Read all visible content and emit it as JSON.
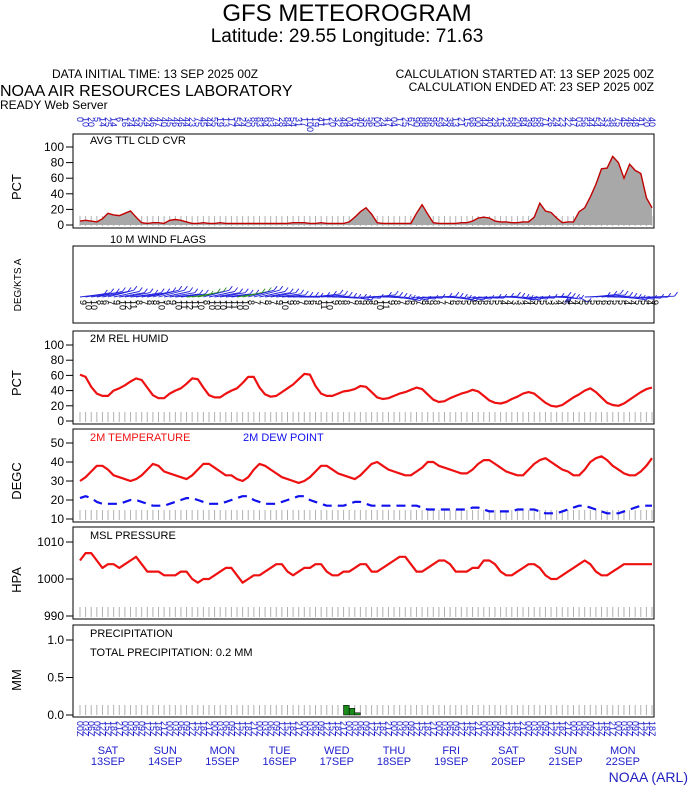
{
  "header": {
    "title": "GFS METEOROGRAM",
    "subtitle": "Latitude: 29.55 Longitude:  71.63",
    "initial_time": "DATA INITIAL TIME: 13 SEP 2025 00Z",
    "calc_started": "CALCULATION STARTED AT: 13 SEP 2025 00Z",
    "calc_ended": "CALCULATION ENDED AT: 23 SEP 2025 00Z",
    "lab": "NOAA AIR RESOURCES LABORATORY",
    "server": "READY Web Server",
    "footer": "NOAA (ARL)"
  },
  "colors": {
    "red": "#ee1111",
    "blue": "#1111ee",
    "gray": "#a8a8a8",
    "green": "#1a8a1a"
  },
  "chart_data": [
    {
      "type": "area",
      "title": "AVG TTL CLD CVR",
      "ylabel": "PCT",
      "ylim": [
        0,
        100
      ],
      "yticks": [
        0,
        20,
        40,
        60,
        80,
        100
      ],
      "values": [
        5,
        6,
        5,
        4,
        8,
        15,
        13,
        12,
        15,
        18,
        10,
        3,
        2,
        3,
        3,
        2,
        6,
        7,
        6,
        4,
        2,
        2,
        3,
        2,
        2,
        3,
        2,
        2,
        2,
        2,
        2,
        2,
        2,
        2,
        2,
        2,
        2,
        2,
        3,
        3,
        3,
        2,
        2,
        3,
        2,
        2,
        2,
        2,
        4,
        10,
        17,
        22,
        14,
        3,
        2,
        2,
        2,
        2,
        2,
        2,
        15,
        26,
        14,
        3,
        2,
        2,
        2,
        2,
        3,
        3,
        5,
        9,
        10,
        9,
        5,
        4,
        4,
        3,
        3,
        4,
        4,
        10,
        28,
        18,
        16,
        9,
        3,
        4,
        4,
        17,
        22,
        36,
        52,
        72,
        73,
        88,
        80,
        60,
        78,
        70,
        66,
        35,
        22
      ]
    },
    {
      "type": "barbs",
      "title": "10 M  WIND FLAGS",
      "ylabel": "DEG/KTS  A",
      "directions": [
        250,
        255,
        255,
        260,
        260,
        265,
        260,
        255,
        255,
        250,
        255,
        255,
        260,
        265,
        265,
        260,
        255,
        250,
        250,
        245,
        255,
        260,
        265,
        260,
        255,
        255,
        250,
        250,
        255,
        260,
        265,
        265,
        260,
        255,
        255,
        250,
        245,
        240,
        240,
        235,
        240,
        245,
        250,
        245,
        240,
        235,
        230,
        230,
        225,
        220,
        230,
        240,
        245,
        240,
        235,
        230,
        225,
        220,
        215,
        220,
        225,
        230,
        235,
        240,
        235,
        230,
        225,
        220,
        215,
        220,
        225,
        230,
        230,
        235,
        240,
        235,
        230,
        225,
        220,
        220,
        225,
        230,
        235,
        240,
        235,
        230,
        225,
        180,
        160,
        200,
        240,
        245,
        250,
        245,
        240,
        235,
        230,
        225,
        220,
        225,
        230,
        235,
        240
      ],
      "speeds": [
        4,
        5,
        6,
        6,
        5,
        5,
        6,
        7,
        6,
        5,
        5,
        6,
        6,
        7,
        6,
        5,
        5,
        6,
        6,
        5,
        6,
        7,
        8,
        7,
        6,
        5,
        5,
        6,
        7,
        7,
        6,
        6,
        5,
        6,
        6,
        5,
        5,
        6,
        6,
        5,
        6,
        7,
        6,
        6,
        5,
        5,
        6,
        6,
        5,
        5,
        6,
        7,
        6,
        6,
        5,
        5,
        6,
        6,
        5,
        6,
        7,
        6,
        6,
        5,
        5,
        6,
        6,
        5,
        5,
        6,
        6,
        5,
        5,
        6,
        6,
        5,
        5,
        6,
        6,
        5,
        6,
        6,
        5,
        5,
        6,
        6,
        5,
        5,
        5,
        6,
        6,
        7,
        6,
        6,
        5,
        6,
        6,
        5,
        6,
        6,
        5,
        5,
        6
      ],
      "speed_labels": [
        "9",
        "10",
        "10",
        "8",
        "6",
        "7",
        "9",
        "10",
        "12",
        "11",
        "8",
        "7",
        "8",
        "8",
        "10",
        "9",
        "9",
        "10",
        "11",
        "12",
        "11",
        "10",
        "8",
        "10",
        "10",
        "10",
        "11",
        "11",
        "10",
        "10",
        "8",
        "7",
        "7",
        "8",
        "7",
        "9",
        "10",
        "9",
        "8",
        "7",
        "8",
        "6",
        "9",
        "11",
        "10",
        "9",
        "8",
        "8",
        "7",
        "8",
        "9",
        "8",
        "9",
        "10",
        "11",
        "9",
        "8",
        "7",
        "6",
        "6",
        "7",
        "8",
        "9",
        "8",
        "7",
        "7",
        "6",
        "6",
        "5",
        "5",
        "6",
        "6",
        "6",
        "5",
        "5",
        "4",
        "4",
        "3",
        "3",
        "4",
        "4",
        "5",
        "5",
        "3",
        "3",
        "4",
        "5",
        "4",
        "4",
        "5",
        "5",
        "5",
        "6",
        "6",
        "6",
        "5",
        "5",
        "4",
        "4",
        "5",
        "5",
        "4",
        "9"
      ]
    },
    {
      "type": "line",
      "title": "2M REL HUMID",
      "ylabel": "PCT",
      "ylim": [
        0,
        100
      ],
      "yticks": [
        0,
        20,
        40,
        60,
        80,
        100
      ],
      "values": [
        61,
        58,
        45,
        36,
        33,
        33,
        40,
        43,
        47,
        52,
        56,
        54,
        44,
        34,
        30,
        30,
        36,
        40,
        43,
        49,
        56,
        55,
        44,
        34,
        31,
        31,
        36,
        40,
        43,
        50,
        58,
        58,
        44,
        35,
        32,
        33,
        38,
        43,
        48,
        55,
        62,
        61,
        46,
        36,
        33,
        33,
        36,
        39,
        40,
        42,
        46,
        45,
        38,
        31,
        29,
        30,
        33,
        36,
        38,
        41,
        44,
        42,
        35,
        28,
        25,
        26,
        30,
        33,
        36,
        38,
        41,
        39,
        33,
        27,
        24,
        23,
        25,
        29,
        32,
        36,
        38,
        36,
        30,
        24,
        20,
        19,
        21,
        26,
        31,
        35,
        40,
        43,
        38,
        31,
        24,
        21,
        20,
        23,
        28,
        33,
        38,
        42,
        44
      ]
    },
    {
      "type": "line",
      "ylabel": "DEGC",
      "ylim": [
        10,
        50
      ],
      "yticks": [
        10,
        20,
        30,
        40,
        50
      ],
      "series": [
        {
          "name": "2M TEMPERATURE",
          "color": "#ee1111",
          "dash": false,
          "values": [
            30,
            32,
            35,
            38,
            38,
            36,
            33,
            32,
            31,
            30,
            31,
            33,
            36,
            39,
            38,
            35,
            34,
            33,
            32,
            31,
            33,
            36,
            39,
            39,
            37,
            35,
            33,
            33,
            31,
            30,
            32,
            36,
            39,
            38,
            36,
            34,
            32,
            31,
            30,
            29,
            30,
            32,
            35,
            38,
            38,
            36,
            34,
            33,
            32,
            31,
            33,
            36,
            39,
            40,
            38,
            36,
            35,
            34,
            33,
            33,
            35,
            37,
            40,
            40,
            38,
            37,
            36,
            35,
            34,
            34,
            36,
            39,
            41,
            41,
            39,
            37,
            35,
            34,
            33,
            33,
            36,
            39,
            41,
            42,
            40,
            38,
            36,
            35,
            33,
            33,
            36,
            40,
            42,
            43,
            41,
            38,
            36,
            34,
            33,
            33,
            35,
            38,
            42
          ]
        },
        {
          "name": "2M  DEW POINT",
          "color": "#1111ee",
          "dash": true,
          "values": [
            21,
            22,
            21,
            19,
            18,
            18,
            18,
            18,
            19,
            20,
            20,
            19,
            18,
            17,
            17,
            17,
            18,
            19,
            20,
            21,
            21,
            20,
            19,
            18,
            18,
            18,
            19,
            20,
            21,
            22,
            22,
            20,
            19,
            18,
            18,
            18,
            19,
            20,
            21,
            22,
            22,
            20,
            19,
            18,
            17,
            17,
            17,
            17,
            18,
            19,
            19,
            18,
            17,
            17,
            17,
            17,
            17,
            17,
            17,
            17,
            17,
            16,
            15,
            15,
            15,
            15,
            15,
            15,
            15,
            15,
            16,
            16,
            15,
            14,
            14,
            14,
            14,
            14,
            15,
            15,
            15,
            15,
            14,
            13,
            13,
            13,
            14,
            15,
            16,
            17,
            17,
            16,
            15,
            14,
            13,
            13,
            13,
            14,
            15,
            16,
            17,
            17,
            17
          ]
        }
      ]
    },
    {
      "type": "line",
      "title": "MSL PRESSURE",
      "ylabel": "HPA",
      "ylim": [
        990,
        1010
      ],
      "yticks": [
        990,
        1000,
        1010
      ],
      "values": [
        1005,
        1007,
        1007,
        1005,
        1003,
        1004,
        1004,
        1003,
        1004,
        1005,
        1006,
        1004,
        1002,
        1002,
        1002,
        1001,
        1001,
        1001,
        1002,
        1002,
        1000,
        999,
        1000,
        1000,
        1001,
        1002,
        1003,
        1003,
        1001,
        999,
        1000,
        1001,
        1001,
        1002,
        1003,
        1004,
        1004,
        1002,
        1001,
        1002,
        1003,
        1003,
        1004,
        1004,
        1002,
        1001,
        1001,
        1002,
        1002,
        1003,
        1004,
        1004,
        1002,
        1002,
        1003,
        1004,
        1005,
        1006,
        1006,
        1004,
        1002,
        1002,
        1003,
        1004,
        1005,
        1005,
        1004,
        1002,
        1002,
        1002,
        1003,
        1003,
        1005,
        1005,
        1004,
        1002,
        1001,
        1001,
        1002,
        1003,
        1004,
        1004,
        1003,
        1001,
        1000,
        1000,
        1001,
        1002,
        1003,
        1004,
        1005,
        1004,
        1002,
        1001,
        1001,
        1002,
        1003,
        1004,
        1004,
        1004,
        1004,
        1004,
        1004
      ]
    },
    {
      "type": "bar",
      "title": "PRECIPITATION",
      "ylabel": "MM",
      "ylim": [
        0,
        1.0
      ],
      "yticks": [
        "0.0",
        "0.5",
        "1.0"
      ],
      "annotation": "TOTAL PRECIPITATION:   0.2 MM",
      "values": [
        0,
        0,
        0,
        0,
        0,
        0,
        0,
        0,
        0,
        0,
        0,
        0,
        0,
        0,
        0,
        0,
        0,
        0,
        0,
        0,
        0,
        0,
        0,
        0,
        0,
        0,
        0,
        0,
        0,
        0,
        0,
        0,
        0,
        0,
        0,
        0,
        0,
        0,
        0,
        0,
        0,
        0,
        0,
        0,
        0,
        0,
        0,
        0.13,
        0.09,
        0.03,
        0,
        0,
        0,
        0,
        0,
        0,
        0,
        0,
        0,
        0,
        0,
        0,
        0,
        0,
        0,
        0,
        0,
        0,
        0,
        0,
        0,
        0,
        0,
        0,
        0,
        0,
        0,
        0,
        0,
        0,
        0,
        0,
        0,
        0,
        0,
        0,
        0,
        0,
        0,
        0,
        0,
        0,
        0,
        0,
        0,
        0,
        0,
        0,
        0,
        0,
        0,
        0,
        0
      ]
    }
  ],
  "time_axis": {
    "hours": [
      "00",
      "03",
      "06",
      "09",
      "12",
      "15",
      "18",
      "21"
    ],
    "days": [
      {
        "dow": "SAT",
        "date": "13SEP"
      },
      {
        "dow": "SUN",
        "date": "14SEP"
      },
      {
        "dow": "MON",
        "date": "15SEP"
      },
      {
        "dow": "TUE",
        "date": "16SEP"
      },
      {
        "dow": "WED",
        "date": "17SEP"
      },
      {
        "dow": "THU",
        "date": "18SEP"
      },
      {
        "dow": "FRI",
        "date": "19SEP"
      },
      {
        "dow": "SAT",
        "date": "20SEP"
      },
      {
        "dow": "SUN",
        "date": "21SEP"
      },
      {
        "dow": "MON",
        "date": "22SEP"
      }
    ],
    "top_labels": [
      "0",
      "10",
      "20",
      "5",
      "14",
      "25",
      "14",
      "6",
      "16",
      "24",
      "34",
      "25",
      "24",
      "46",
      "47",
      "40",
      "45",
      "46",
      "46",
      "44",
      "23",
      "75",
      "45",
      "44",
      "55",
      "19",
      "13",
      "17",
      "54",
      "24",
      "30",
      "85",
      "83",
      "94",
      "83",
      "74",
      "28",
      "84",
      "54",
      "31",
      "17",
      "100",
      "19",
      "41",
      "11",
      "20",
      "32",
      "48",
      "04",
      "16",
      "40",
      "35",
      "56",
      "00",
      "24",
      "47",
      "04",
      "17",
      "25",
      "67",
      "90",
      "88",
      "86",
      "95",
      "59",
      "24",
      "38",
      "13",
      "21",
      "15",
      "68",
      "00",
      "44",
      "40",
      "29",
      "15",
      "23",
      "58",
      "20",
      "84",
      "39",
      "69",
      "68",
      "71",
      "26",
      "24",
      "23",
      "22",
      "47",
      "03",
      "56",
      "44",
      "54",
      "24",
      "33",
      "38",
      "75",
      "45",
      "46",
      "48",
      "41",
      "20",
      "40"
    ]
  }
}
